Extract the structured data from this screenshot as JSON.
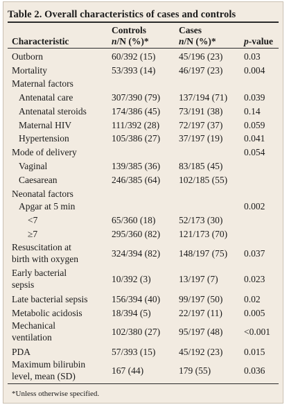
{
  "table": {
    "title": "Table 2. Overall characteristics of cases and controls",
    "headers": {
      "characteristic": "Characteristic",
      "controls_top": "Controls",
      "controls_bottom_n": "n",
      "controls_bottom_rest": "/N (%)*",
      "cases_top": "Cases",
      "cases_bottom_n": "n",
      "cases_bottom_rest": "/N (%)*",
      "pvalue_p": "p",
      "pvalue_rest": "-value"
    },
    "rows": [
      {
        "label": "Outborn",
        "label2": "",
        "controls": "60/392 (15)",
        "cases": "45/196 (23)",
        "p": "0.03"
      },
      {
        "label": "Mortality",
        "label2": "",
        "controls": "53/393 (14)",
        "cases": "46/197 (23)",
        "p": "0.004"
      },
      {
        "label": "Maternal factors",
        "label2": "",
        "controls": "",
        "cases": "",
        "p": ""
      },
      {
        "label": "Antenatal care",
        "label2": "",
        "controls": "307/390 (79)",
        "cases": "137/194 (71)",
        "p": "0.039"
      },
      {
        "label": "Antenatal steroids",
        "label2": "",
        "controls": "174/386 (45)",
        "cases": "73/191 (38)",
        "p": "0.14"
      },
      {
        "label": "Maternal HIV",
        "label2": "",
        "controls": "111/392 (28)",
        "cases": "72/197 (37)",
        "p": "0.059"
      },
      {
        "label": "Hypertension",
        "label2": "",
        "controls": "105/386 (27)",
        "cases": "37/197 (19)",
        "p": "0.041"
      },
      {
        "label": "Mode of delivery",
        "label2": "",
        "controls": "",
        "cases": "",
        "p": "0.054"
      },
      {
        "label": "Vaginal",
        "label2": "",
        "controls": "139/385 (36)",
        "cases": "83/185 (45)",
        "p": ""
      },
      {
        "label": "Caesarean",
        "label2": "",
        "controls": "246/385 (64)",
        "cases": "102/185 (55)",
        "p": ""
      },
      {
        "label": "Neonatal factors",
        "label2": "",
        "controls": "",
        "cases": "",
        "p": ""
      },
      {
        "label": "Apgar at 5 min",
        "label2": "",
        "controls": "",
        "cases": "",
        "p": "0.002"
      },
      {
        "label": "<7",
        "label2": "",
        "controls": "65/360 (18)",
        "cases": "52/173 (30)",
        "p": ""
      },
      {
        "label": "≥7",
        "label2": "",
        "controls": "295/360 (82)",
        "cases": "121/173 (70)",
        "p": ""
      },
      {
        "label": "Resuscitation at",
        "label2": "birth with oxygen",
        "controls": "324/394 (82)",
        "cases": "148/197 (75)",
        "p": "0.037"
      },
      {
        "label": "Early bacterial",
        "label2": "sepsis",
        "controls": "10/392 (3)",
        "cases": "13/197 (7)",
        "p": "0.023"
      },
      {
        "label": "Late bacterial sepsis",
        "label2": "",
        "controls": "156/394 (40)",
        "cases": "99/197 (50)",
        "p": "0.02"
      },
      {
        "label": "Metabolic acidosis",
        "label2": "",
        "controls": "18/394 (5)",
        "cases": "22/197 (11)",
        "p": "0.005"
      },
      {
        "label": "Mechanical",
        "label2": "ventilation",
        "controls": "102/380 (27)",
        "cases": "95/197 (48)",
        "p": "<0.001"
      },
      {
        "label": "PDA",
        "label2": "",
        "controls": "57/393 (15)",
        "cases": "45/192 (23)",
        "p": "0.015"
      },
      {
        "label": "Maximum bilirubin",
        "label2": "level, mean (SD)",
        "controls": "167 (44)",
        "cases": "179 (55)",
        "p": "0.036"
      }
    ],
    "footnote": "*Unless otherwise specified."
  }
}
